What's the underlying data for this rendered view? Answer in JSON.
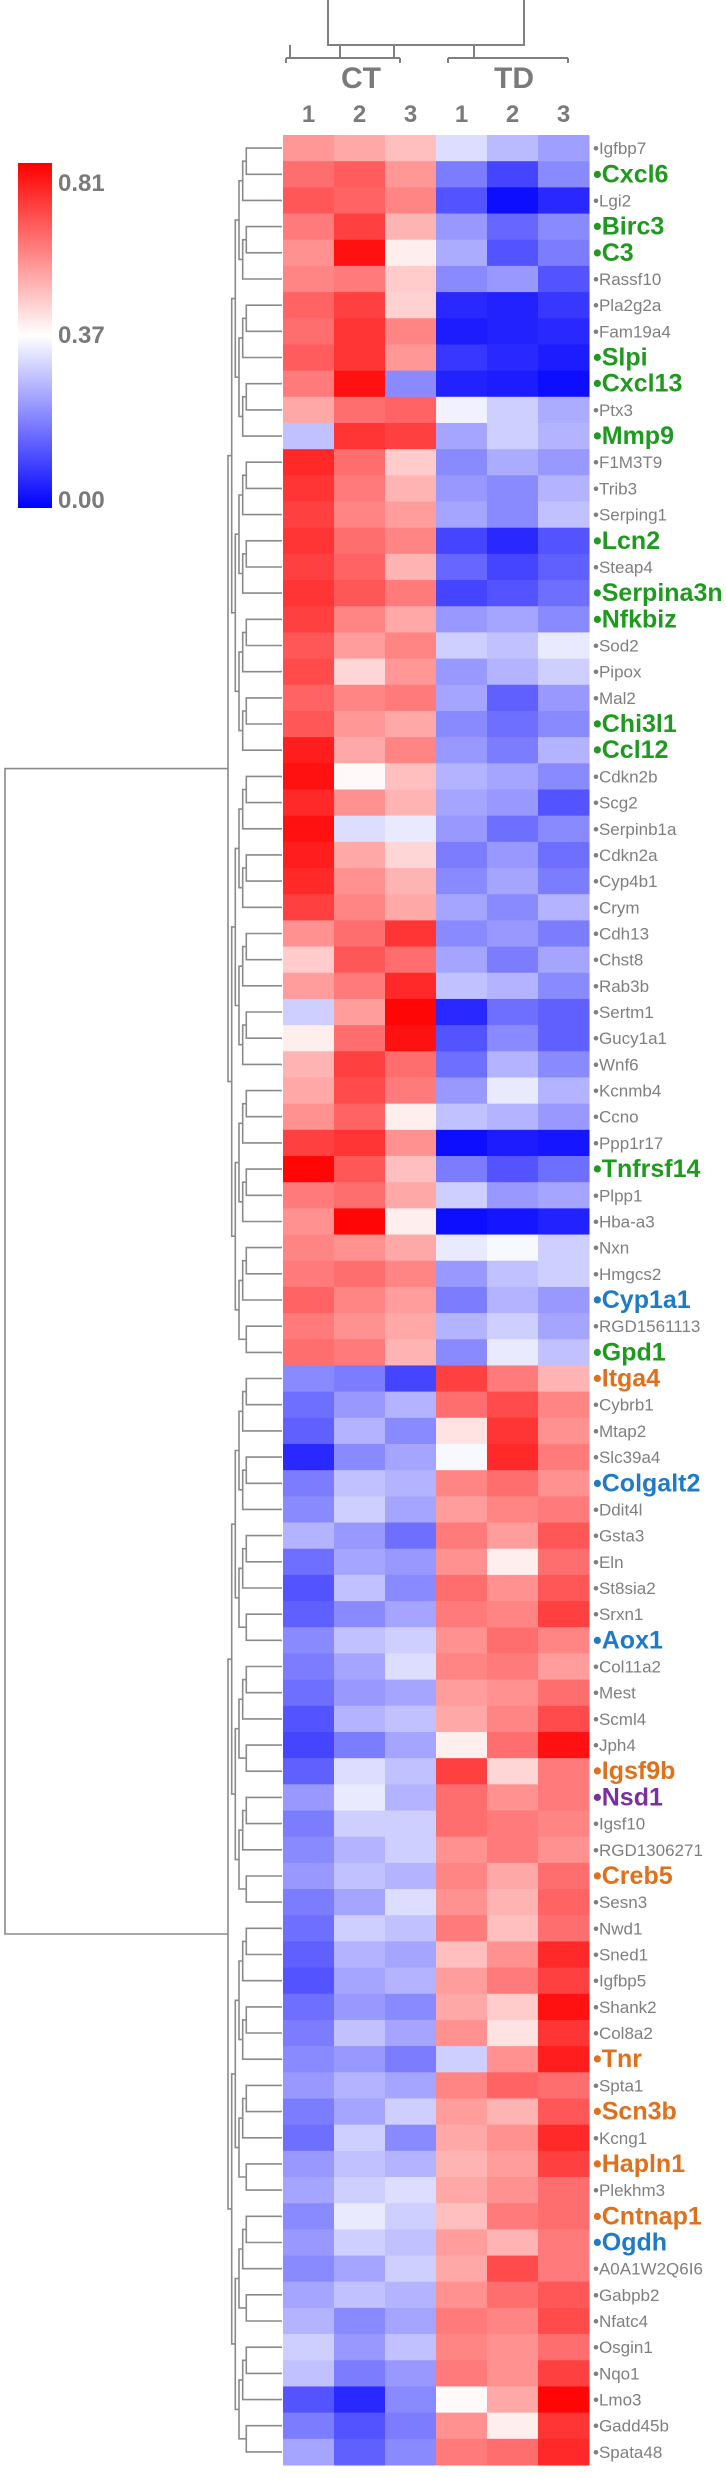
{
  "chart_data": {
    "type": "heatmap",
    "title": "",
    "groups": [
      {
        "name": "CT",
        "columns": [
          "1",
          "2",
          "3"
        ]
      },
      {
        "name": "TD",
        "columns": [
          "1",
          "2",
          "3"
        ]
      }
    ],
    "color_scale": {
      "min": 0.0,
      "mid": 0.37,
      "max": 0.81,
      "min_label": "0.00",
      "mid_label": "0.37",
      "max_label": "0.81",
      "min_color": "#0000ff",
      "mid_color": "#ffffff",
      "max_color": "#ff0000"
    },
    "label_colors": {
      "grey": "#7f7f7f",
      "green": "#1e9a1e",
      "blue": "#1f7ac8",
      "orange": "#e0701c",
      "purple": "#7a30a0"
    },
    "rows": [
      {
        "gene": "Igfbp7",
        "style": "grey",
        "values": [
          0.55,
          0.52,
          0.48,
          0.32,
          0.27,
          0.23
        ]
      },
      {
        "gene": "Cxcl6",
        "style": "green",
        "values": [
          0.62,
          0.65,
          0.55,
          0.18,
          0.1,
          0.2
        ]
      },
      {
        "gene": "Lgi2",
        "style": "grey",
        "values": [
          0.66,
          0.64,
          0.58,
          0.12,
          0.02,
          0.06
        ]
      },
      {
        "gene": "Birc3",
        "style": "green",
        "values": [
          0.6,
          0.7,
          0.5,
          0.22,
          0.15,
          0.2
        ]
      },
      {
        "gene": "C3",
        "style": "green",
        "values": [
          0.56,
          0.78,
          0.4,
          0.25,
          0.12,
          0.18
        ]
      },
      {
        "gene": "Rassf10",
        "style": "grey",
        "values": [
          0.58,
          0.6,
          0.46,
          0.2,
          0.22,
          0.12
        ]
      },
      {
        "gene": "Pla2g2a",
        "style": "grey",
        "values": [
          0.64,
          0.7,
          0.45,
          0.06,
          0.05,
          0.08
        ]
      },
      {
        "gene": "Fam19a4",
        "style": "grey",
        "values": [
          0.62,
          0.72,
          0.58,
          0.04,
          0.05,
          0.06
        ]
      },
      {
        "gene": "Slpi",
        "style": "green",
        "values": [
          0.65,
          0.72,
          0.55,
          0.08,
          0.06,
          0.04
        ]
      },
      {
        "gene": "Cxcl13",
        "style": "green",
        "values": [
          0.6,
          0.78,
          0.2,
          0.05,
          0.04,
          0.02
        ]
      },
      {
        "gene": "Ptx3",
        "style": "grey",
        "values": [
          0.52,
          0.62,
          0.64,
          0.35,
          0.3,
          0.25
        ]
      },
      {
        "gene": "Mmp9",
        "style": "green",
        "values": [
          0.28,
          0.72,
          0.7,
          0.24,
          0.3,
          0.26
        ]
      },
      {
        "gene": "F1M3T9",
        "style": "grey",
        "values": [
          0.74,
          0.62,
          0.46,
          0.2,
          0.25,
          0.22
        ]
      },
      {
        "gene": "Trib3",
        "style": "grey",
        "values": [
          0.72,
          0.6,
          0.5,
          0.22,
          0.2,
          0.26
        ]
      },
      {
        "gene": "Serping1",
        "style": "grey",
        "values": [
          0.7,
          0.58,
          0.54,
          0.24,
          0.2,
          0.28
        ]
      },
      {
        "gene": "Lcn2",
        "style": "green",
        "values": [
          0.72,
          0.62,
          0.58,
          0.1,
          0.06,
          0.12
        ]
      },
      {
        "gene": "Steap4",
        "style": "grey",
        "values": [
          0.7,
          0.64,
          0.5,
          0.15,
          0.1,
          0.14
        ]
      },
      {
        "gene": "Serpina3n",
        "style": "green",
        "values": [
          0.72,
          0.66,
          0.6,
          0.1,
          0.12,
          0.16
        ]
      },
      {
        "gene": "Nfkbiz",
        "style": "green",
        "values": [
          0.7,
          0.58,
          0.52,
          0.22,
          0.24,
          0.2
        ]
      },
      {
        "gene": "Sod2",
        "style": "grey",
        "values": [
          0.66,
          0.54,
          0.58,
          0.3,
          0.28,
          0.34
        ]
      },
      {
        "gene": "Pipox",
        "style": "grey",
        "values": [
          0.68,
          0.44,
          0.55,
          0.22,
          0.26,
          0.3
        ]
      },
      {
        "gene": "Mal2",
        "style": "grey",
        "values": [
          0.64,
          0.58,
          0.6,
          0.24,
          0.14,
          0.22
        ]
      },
      {
        "gene": "Chi3l1",
        "style": "green",
        "values": [
          0.66,
          0.55,
          0.52,
          0.2,
          0.16,
          0.2
        ]
      },
      {
        "gene": "Ccl12",
        "style": "green",
        "values": [
          0.76,
          0.52,
          0.58,
          0.22,
          0.18,
          0.26
        ]
      },
      {
        "gene": "Cdkn2b",
        "style": "grey",
        "values": [
          0.78,
          0.38,
          0.48,
          0.26,
          0.24,
          0.2
        ]
      },
      {
        "gene": "Scg2",
        "style": "grey",
        "values": [
          0.74,
          0.56,
          0.5,
          0.24,
          0.22,
          0.12
        ]
      },
      {
        "gene": "Serpinb1a",
        "style": "grey",
        "values": [
          0.78,
          0.32,
          0.34,
          0.22,
          0.16,
          0.2
        ]
      },
      {
        "gene": "Cdkn2a",
        "style": "grey",
        "values": [
          0.76,
          0.52,
          0.44,
          0.18,
          0.22,
          0.16
        ]
      },
      {
        "gene": "Cyp4b1",
        "style": "grey",
        "values": [
          0.74,
          0.56,
          0.5,
          0.2,
          0.24,
          0.18
        ]
      },
      {
        "gene": "Crym",
        "style": "grey",
        "values": [
          0.7,
          0.58,
          0.52,
          0.24,
          0.2,
          0.26
        ]
      },
      {
        "gene": "Cdh13",
        "style": "grey",
        "values": [
          0.56,
          0.62,
          0.72,
          0.2,
          0.22,
          0.18
        ]
      },
      {
        "gene": "Chst8",
        "style": "grey",
        "values": [
          0.46,
          0.66,
          0.62,
          0.24,
          0.18,
          0.24
        ]
      },
      {
        "gene": "Rab3b",
        "style": "grey",
        "values": [
          0.54,
          0.6,
          0.74,
          0.28,
          0.26,
          0.2
        ]
      },
      {
        "gene": "Sertm1",
        "style": "grey",
        "values": [
          0.3,
          0.54,
          0.8,
          0.06,
          0.16,
          0.14
        ]
      },
      {
        "gene": "Gucy1a1",
        "style": "grey",
        "values": [
          0.4,
          0.62,
          0.78,
          0.12,
          0.2,
          0.14
        ]
      },
      {
        "gene": "Wnf6",
        "style": "grey",
        "values": [
          0.5,
          0.7,
          0.62,
          0.16,
          0.26,
          0.2
        ]
      },
      {
        "gene": "Kcnmb4",
        "style": "grey",
        "values": [
          0.52,
          0.68,
          0.6,
          0.22,
          0.34,
          0.26
        ]
      },
      {
        "gene": "Ccno",
        "style": "grey",
        "values": [
          0.56,
          0.64,
          0.4,
          0.28,
          0.26,
          0.22
        ]
      },
      {
        "gene": "Ppp1r17",
        "style": "grey",
        "values": [
          0.7,
          0.72,
          0.56,
          0.02,
          0.04,
          0.03
        ]
      },
      {
        "gene": "Tnfrsf14",
        "style": "green",
        "values": [
          0.8,
          0.66,
          0.48,
          0.18,
          0.12,
          0.16
        ]
      },
      {
        "gene": "Plpp1",
        "style": "grey",
        "values": [
          0.6,
          0.62,
          0.52,
          0.3,
          0.22,
          0.24
        ]
      },
      {
        "gene": "Hba-a3",
        "style": "grey",
        "values": [
          0.56,
          0.8,
          0.4,
          0.02,
          0.03,
          0.05
        ]
      },
      {
        "gene": "Nxn",
        "style": "grey",
        "values": [
          0.58,
          0.56,
          0.52,
          0.34,
          0.36,
          0.3
        ]
      },
      {
        "gene": "Hmgcs2",
        "style": "grey",
        "values": [
          0.6,
          0.62,
          0.58,
          0.22,
          0.28,
          0.3
        ]
      },
      {
        "gene": "Cyp1a1",
        "style": "blue",
        "values": [
          0.64,
          0.58,
          0.54,
          0.18,
          0.26,
          0.22
        ]
      },
      {
        "gene": "RGD1561113",
        "style": "grey",
        "values": [
          0.6,
          0.56,
          0.52,
          0.26,
          0.3,
          0.24
        ]
      },
      {
        "gene": "Gpd1",
        "style": "green",
        "values": [
          0.62,
          0.6,
          0.5,
          0.2,
          0.34,
          0.28
        ]
      },
      {
        "gene": "Itga4",
        "style": "orange",
        "values": [
          0.2,
          0.18,
          0.1,
          0.7,
          0.6,
          0.5
        ]
      },
      {
        "gene": "Cybrb1",
        "style": "grey",
        "values": [
          0.16,
          0.22,
          0.26,
          0.62,
          0.68,
          0.58
        ]
      },
      {
        "gene": "Mtap2",
        "style": "grey",
        "values": [
          0.14,
          0.26,
          0.2,
          0.42,
          0.72,
          0.56
        ]
      },
      {
        "gene": "Slc39a4",
        "style": "grey",
        "values": [
          0.06,
          0.2,
          0.24,
          0.36,
          0.74,
          0.6
        ]
      },
      {
        "gene": "Colgalt2",
        "style": "blue",
        "values": [
          0.18,
          0.28,
          0.26,
          0.58,
          0.62,
          0.56
        ]
      },
      {
        "gene": "Ddit4l",
        "style": "grey",
        "values": [
          0.2,
          0.3,
          0.24,
          0.54,
          0.58,
          0.6
        ]
      },
      {
        "gene": "Gsta3",
        "style": "grey",
        "values": [
          0.26,
          0.22,
          0.16,
          0.6,
          0.54,
          0.66
        ]
      },
      {
        "gene": "Eln",
        "style": "grey",
        "values": [
          0.16,
          0.24,
          0.22,
          0.56,
          0.4,
          0.62
        ]
      },
      {
        "gene": "St8sia2",
        "style": "grey",
        "values": [
          0.12,
          0.28,
          0.2,
          0.62,
          0.56,
          0.66
        ]
      },
      {
        "gene": "Srxn1",
        "style": "grey",
        "values": [
          0.14,
          0.2,
          0.24,
          0.6,
          0.58,
          0.7
        ]
      },
      {
        "gene": "Aox1",
        "style": "blue",
        "values": [
          0.2,
          0.28,
          0.3,
          0.56,
          0.62,
          0.58
        ]
      },
      {
        "gene": "Col11a2",
        "style": "grey",
        "values": [
          0.18,
          0.24,
          0.32,
          0.58,
          0.6,
          0.54
        ]
      },
      {
        "gene": "Mest",
        "style": "grey",
        "values": [
          0.16,
          0.22,
          0.24,
          0.54,
          0.56,
          0.62
        ]
      },
      {
        "gene": "Scml4",
        "style": "grey",
        "values": [
          0.12,
          0.26,
          0.28,
          0.52,
          0.58,
          0.68
        ]
      },
      {
        "gene": "Jph4",
        "style": "grey",
        "values": [
          0.1,
          0.18,
          0.24,
          0.4,
          0.62,
          0.78
        ]
      },
      {
        "gene": "Igsf9b",
        "style": "orange",
        "values": [
          0.14,
          0.32,
          0.28,
          0.7,
          0.44,
          0.6
        ]
      },
      {
        "gene": "Nsd1",
        "style": "purple",
        "values": [
          0.22,
          0.34,
          0.26,
          0.62,
          0.56,
          0.6
        ]
      },
      {
        "gene": "Igsf10",
        "style": "grey",
        "values": [
          0.18,
          0.3,
          0.3,
          0.62,
          0.6,
          0.58
        ]
      },
      {
        "gene": "RGD1306271",
        "style": "grey",
        "values": [
          0.2,
          0.26,
          0.3,
          0.56,
          0.6,
          0.56
        ]
      },
      {
        "gene": "Creb5",
        "style": "orange",
        "values": [
          0.22,
          0.28,
          0.26,
          0.58,
          0.52,
          0.62
        ]
      },
      {
        "gene": "Sesn3",
        "style": "grey",
        "values": [
          0.18,
          0.24,
          0.32,
          0.56,
          0.5,
          0.64
        ]
      },
      {
        "gene": "Nwd1",
        "style": "grey",
        "values": [
          0.16,
          0.3,
          0.28,
          0.6,
          0.48,
          0.62
        ]
      },
      {
        "gene": "Sned1",
        "style": "grey",
        "values": [
          0.14,
          0.26,
          0.24,
          0.48,
          0.56,
          0.74
        ]
      },
      {
        "gene": "Igfbp5",
        "style": "grey",
        "values": [
          0.12,
          0.24,
          0.26,
          0.54,
          0.6,
          0.7
        ]
      },
      {
        "gene": "Shank2",
        "style": "grey",
        "values": [
          0.16,
          0.22,
          0.2,
          0.52,
          0.46,
          0.78
        ]
      },
      {
        "gene": "Col8a2",
        "style": "grey",
        "values": [
          0.18,
          0.28,
          0.24,
          0.56,
          0.42,
          0.72
        ]
      },
      {
        "gene": "Tnr",
        "style": "orange",
        "values": [
          0.2,
          0.22,
          0.18,
          0.3,
          0.56,
          0.76
        ]
      },
      {
        "gene": "Spta1",
        "style": "grey",
        "values": [
          0.22,
          0.26,
          0.24,
          0.58,
          0.64,
          0.62
        ]
      },
      {
        "gene": "Scn3b",
        "style": "orange",
        "values": [
          0.18,
          0.24,
          0.3,
          0.54,
          0.5,
          0.66
        ]
      },
      {
        "gene": "Kcng1",
        "style": "grey",
        "values": [
          0.16,
          0.3,
          0.2,
          0.52,
          0.56,
          0.74
        ]
      },
      {
        "gene": "Hapln1",
        "style": "orange",
        "values": [
          0.22,
          0.28,
          0.26,
          0.5,
          0.54,
          0.7
        ]
      },
      {
        "gene": "Plekhm3",
        "style": "grey",
        "values": [
          0.24,
          0.3,
          0.32,
          0.52,
          0.56,
          0.62
        ]
      },
      {
        "gene": "Cntnap1",
        "style": "orange",
        "values": [
          0.2,
          0.34,
          0.3,
          0.48,
          0.6,
          0.62
        ]
      },
      {
        "gene": "Ogdh",
        "style": "blue",
        "values": [
          0.22,
          0.3,
          0.28,
          0.54,
          0.5,
          0.6
        ]
      },
      {
        "gene": "A0A1W2Q6I6",
        "style": "grey",
        "values": [
          0.2,
          0.24,
          0.3,
          0.52,
          0.68,
          0.6
        ]
      },
      {
        "gene": "Gabpb2",
        "style": "grey",
        "values": [
          0.24,
          0.28,
          0.26,
          0.56,
          0.62,
          0.66
        ]
      },
      {
        "gene": "Nfatc4",
        "style": "grey",
        "values": [
          0.26,
          0.2,
          0.24,
          0.6,
          0.58,
          0.68
        ]
      },
      {
        "gene": "Osgin1",
        "style": "grey",
        "values": [
          0.3,
          0.22,
          0.28,
          0.58,
          0.56,
          0.62
        ]
      },
      {
        "gene": "Nqo1",
        "style": "grey",
        "values": [
          0.28,
          0.18,
          0.22,
          0.6,
          0.56,
          0.7
        ]
      },
      {
        "gene": "Lmo3",
        "style": "grey",
        "values": [
          0.12,
          0.06,
          0.2,
          0.38,
          0.52,
          0.8
        ]
      },
      {
        "gene": "Gadd45b",
        "style": "grey",
        "values": [
          0.18,
          0.12,
          0.18,
          0.56,
          0.4,
          0.72
        ]
      },
      {
        "gene": "Spata48",
        "style": "grey",
        "values": [
          0.24,
          0.14,
          0.2,
          0.6,
          0.62,
          0.74
        ]
      }
    ]
  }
}
